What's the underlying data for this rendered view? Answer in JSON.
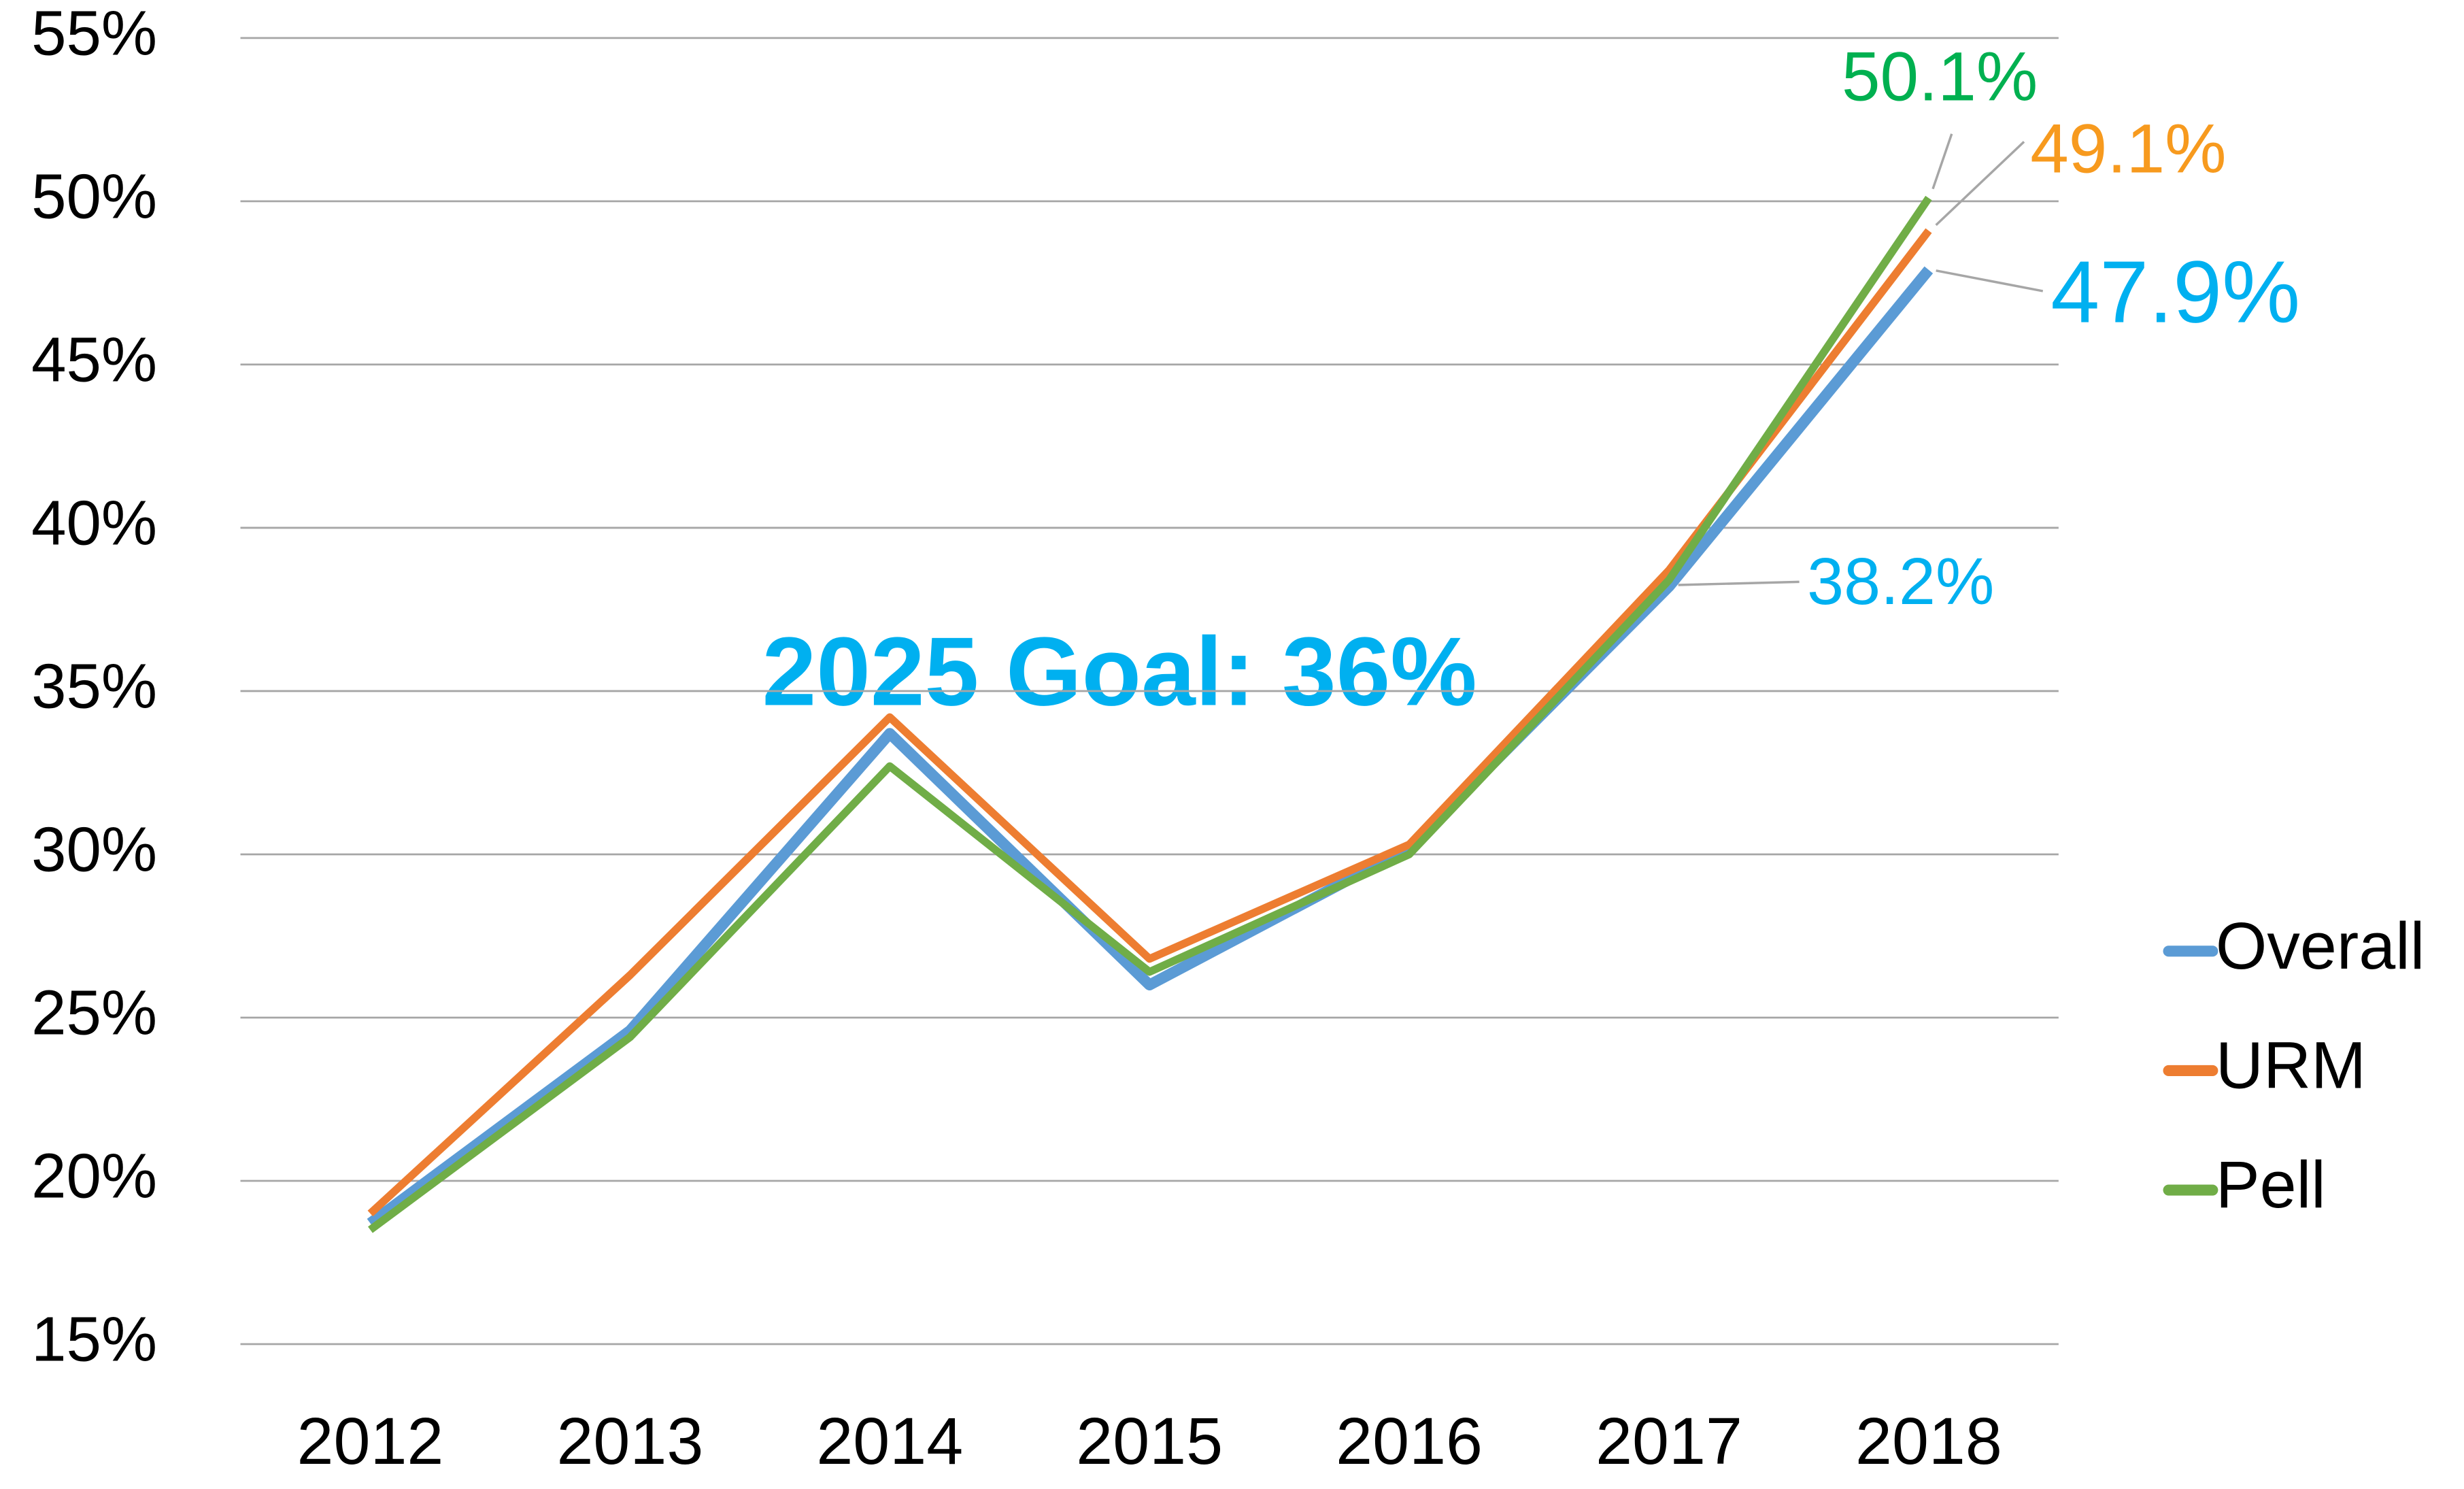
{
  "chart_data": {
    "type": "line",
    "categories": [
      "2012",
      "2013",
      "2014",
      "2015",
      "2016",
      "2017",
      "2018"
    ],
    "series": [
      {
        "name": "Overall",
        "color": "#5b9bd5",
        "values": [
          18.7,
          24.6,
          33.7,
          26.0,
          30.2,
          38.2,
          47.9
        ],
        "value_labels": [
          null,
          null,
          null,
          null,
          null,
          "38.2%",
          "47.9%"
        ],
        "label_color": "#00b0f0"
      },
      {
        "name": "URM",
        "color": "#ed7d31",
        "values": [
          19.0,
          26.3,
          34.2,
          26.8,
          30.3,
          38.7,
          49.1
        ],
        "value_labels": [
          null,
          null,
          null,
          null,
          null,
          null,
          "49.1%"
        ],
        "label_color": "#f79a1e"
      },
      {
        "name": "Pell",
        "color": "#70ad47",
        "values": [
          18.5,
          24.4,
          32.7,
          26.4,
          30.0,
          38.4,
          50.1
        ],
        "value_labels": [
          null,
          null,
          null,
          null,
          null,
          null,
          "50.1%"
        ],
        "label_color": "#00b050"
      }
    ],
    "annotations": [
      "2025 Goal: 36%"
    ],
    "ylim": [
      15,
      55
    ],
    "yticks": [
      {
        "value": 15,
        "label": "15%"
      },
      {
        "value": 20,
        "label": "20%"
      },
      {
        "value": 25,
        "label": "25%"
      },
      {
        "value": 30,
        "label": "30%"
      },
      {
        "value": 35,
        "label": "35%"
      },
      {
        "value": 40,
        "label": "40%"
      },
      {
        "value": 45,
        "label": "45%"
      },
      {
        "value": 50,
        "label": "50%"
      },
      {
        "value": 55,
        "label": "55%"
      }
    ],
    "grid": true,
    "legend": "right"
  }
}
